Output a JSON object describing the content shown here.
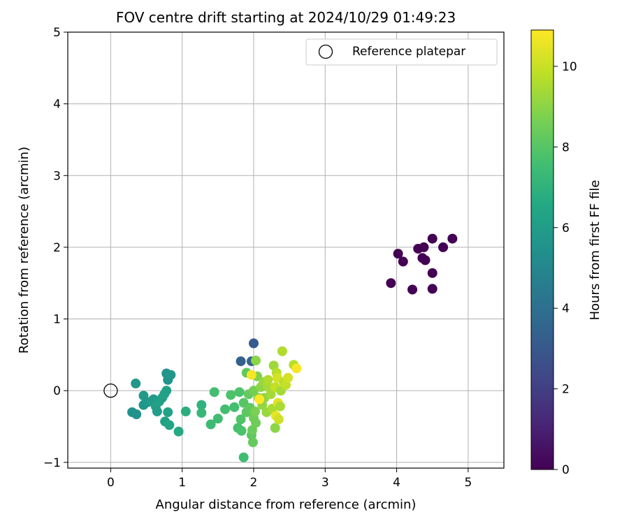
{
  "chart_data": {
    "type": "scatter",
    "title": "FOV centre drift starting at 2024/10/29 01:49:23",
    "xlabel": "Angular distance from reference (arcmin)",
    "ylabel": "Rotation from reference (arcmin)",
    "xlim": [
      -0.6,
      5.5
    ],
    "ylim": [
      -1.08,
      5.0
    ],
    "xticks": [
      0,
      1,
      2,
      3,
      4,
      5
    ],
    "yticks": [
      -1,
      0,
      1,
      2,
      3,
      4,
      5
    ],
    "xtick_labels": [
      "0",
      "1",
      "2",
      "3",
      "4",
      "5"
    ],
    "ytick_labels": [
      "−1",
      "0",
      "1",
      "2",
      "3",
      "4",
      "5"
    ],
    "grid": true,
    "legend": {
      "position": "top-right",
      "entries": [
        "Reference platepar"
      ]
    },
    "reference_point": {
      "label": "Reference platepar",
      "x": 0,
      "y": 0
    },
    "colorbar": {
      "label": "Hours from first FF file",
      "range": [
        0,
        10.9
      ],
      "ticks": [
        0,
        2,
        4,
        6,
        8,
        10
      ],
      "tick_labels": [
        "0",
        "2",
        "4",
        "6",
        "8",
        "10"
      ],
      "colormap": "viridis"
    },
    "points": [
      [
        3.92,
        1.5,
        0
      ],
      [
        4.02,
        1.91,
        0
      ],
      [
        4.09,
        1.8,
        0
      ],
      [
        4.22,
        1.41,
        0
      ],
      [
        4.3,
        1.98,
        0
      ],
      [
        4.36,
        1.85,
        0
      ],
      [
        4.38,
        2.0,
        0
      ],
      [
        4.4,
        1.82,
        0
      ],
      [
        4.5,
        2.12,
        0
      ],
      [
        4.5,
        1.64,
        0
      ],
      [
        4.5,
        1.42,
        0
      ],
      [
        4.65,
        2.0,
        0
      ],
      [
        4.78,
        2.12,
        0
      ],
      [
        1.82,
        0.41,
        3.4
      ],
      [
        2.0,
        0.66,
        3.1
      ],
      [
        1.97,
        0.41,
        3.6
      ],
      [
        0.35,
        0.1,
        5.7
      ],
      [
        0.3,
        -0.3,
        5.5
      ],
      [
        0.36,
        -0.33,
        5.5
      ],
      [
        0.46,
        -0.07,
        5.9
      ],
      [
        0.46,
        -0.2,
        5.7
      ],
      [
        0.52,
        -0.16,
        5.8
      ],
      [
        0.58,
        -0.15,
        6.0
      ],
      [
        0.6,
        -0.12,
        5.9
      ],
      [
        0.63,
        -0.22,
        6.1
      ],
      [
        0.65,
        -0.29,
        6.0
      ],
      [
        0.68,
        -0.15,
        6.2
      ],
      [
        0.72,
        -0.1,
        6.1
      ],
      [
        0.75,
        -0.05,
        6.3
      ],
      [
        0.76,
        -0.43,
        6.2
      ],
      [
        0.78,
        0.0,
        6.2
      ],
      [
        0.78,
        0.24,
        5.6
      ],
      [
        0.8,
        -0.3,
        6.3
      ],
      [
        0.8,
        0.15,
        5.6
      ],
      [
        0.84,
        0.22,
        5.7
      ],
      [
        0.82,
        -0.48,
        6.4
      ],
      [
        0.95,
        -0.57,
        6.6
      ],
      [
        1.05,
        -0.29,
        6.8
      ],
      [
        1.27,
        -0.2,
        7.0
      ],
      [
        1.27,
        -0.31,
        7.2
      ],
      [
        1.4,
        -0.47,
        7.4
      ],
      [
        1.45,
        -0.02,
        7.6
      ],
      [
        1.5,
        -0.39,
        7.5
      ],
      [
        1.6,
        -0.26,
        7.6
      ],
      [
        1.68,
        -0.06,
        7.8
      ],
      [
        1.73,
        -0.23,
        7.6
      ],
      [
        1.78,
        -0.52,
        7.7
      ],
      [
        1.8,
        -0.02,
        7.8
      ],
      [
        1.82,
        -0.4,
        7.9
      ],
      [
        1.83,
        -0.56,
        7.8
      ],
      [
        1.86,
        -0.93,
        7.5
      ],
      [
        1.86,
        -0.17,
        8.0
      ],
      [
        1.9,
        0.25,
        8.2
      ],
      [
        1.9,
        -0.3,
        8.1
      ],
      [
        1.93,
        -0.05,
        8.3
      ],
      [
        1.95,
        -0.24,
        8.2
      ],
      [
        1.97,
        -0.62,
        8.1
      ],
      [
        1.98,
        -0.55,
        8.4
      ],
      [
        1.99,
        -0.72,
        8.3
      ],
      [
        2.0,
        -0.38,
        8.5
      ],
      [
        2.0,
        0.0,
        8.6
      ],
      [
        2.02,
        -0.29,
        8.7
      ],
      [
        2.03,
        -0.45,
        8.5
      ],
      [
        2.03,
        0.42,
        9.0
      ],
      [
        2.05,
        0.2,
        8.8
      ],
      [
        2.07,
        -0.1,
        8.9
      ],
      [
        2.1,
        0.05,
        9.0
      ],
      [
        2.12,
        -0.2,
        9.1
      ],
      [
        2.14,
        0.12,
        9.2
      ],
      [
        2.15,
        -0.1,
        9.0
      ],
      [
        2.18,
        -0.3,
        9.2
      ],
      [
        2.2,
        0.05,
        9.4
      ],
      [
        2.2,
        0.15,
        9.6
      ],
      [
        2.24,
        -0.05,
        9.4
      ],
      [
        2.26,
        -0.25,
        9.5
      ],
      [
        2.28,
        0.35,
        9.3
      ],
      [
        2.3,
        -0.52,
        9.0
      ],
      [
        2.3,
        0.05,
        9.9
      ],
      [
        2.31,
        -0.35,
        10.5
      ],
      [
        2.32,
        0.25,
        9.7
      ],
      [
        2.33,
        0.18,
        10.2
      ],
      [
        2.34,
        -0.17,
        10.4
      ],
      [
        2.35,
        -0.4,
        10.1
      ],
      [
        2.37,
        -0.22,
        9.5
      ],
      [
        2.38,
        0.0,
        9.4
      ],
      [
        2.4,
        0.55,
        9.6
      ],
      [
        2.42,
        0.12,
        9.8
      ],
      [
        2.45,
        0.08,
        9.9
      ],
      [
        2.48,
        0.18,
        10.2
      ],
      [
        2.56,
        0.36,
        9.7
      ],
      [
        2.6,
        0.31,
        10.8
      ],
      [
        1.97,
        0.22,
        10.8
      ],
      [
        2.08,
        -0.12,
        10.9
      ]
    ]
  }
}
